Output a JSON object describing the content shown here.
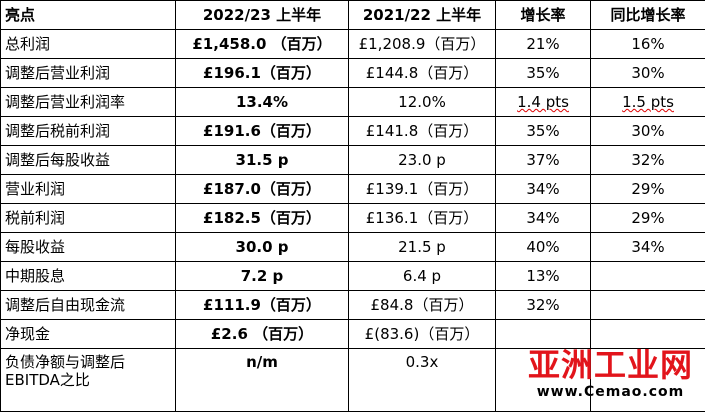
{
  "table": {
    "header": [
      "亮点",
      "2022/23  上半年",
      "2021/22  上半年",
      "增长率",
      "同比增长率"
    ],
    "rows": [
      [
        "总利润",
        "£1,458.0 （百万）",
        "£1,208.9（百万）",
        "21%",
        "16%"
      ],
      [
        "调整后营业利润",
        "£196.1（百万）",
        "£144.8（百万）",
        "35%",
        "30%"
      ],
      [
        "调整后营业利润率",
        "13.4%",
        "12.0%",
        "1.4 pts",
        "1.5 pts"
      ],
      [
        "调整后税前利润",
        "£191.6（百万）",
        "£141.8（百万）",
        "35%",
        "30%"
      ],
      [
        "调整后每股收益",
        "31.5 p",
        "23.0 p",
        "37%",
        "32%"
      ],
      [
        "营业利润",
        "£187.0（百万）",
        "£139.1（百万）",
        "34%",
        "29%"
      ],
      [
        "税前利润",
        "£182.5（百万）",
        "£136.1（百万）",
        "34%",
        "29%"
      ],
      [
        "每股收益",
        "30.0 p",
        "21.5 p",
        "40%",
        "34%"
      ],
      [
        "中期股息",
        "7.2 p",
        "6.4 p",
        "13%",
        null
      ],
      [
        "调整后自由现金流",
        "£111.9（百万）",
        "£84.8（百万）",
        "32%",
        null
      ],
      [
        "净现金",
        "£2.6 （百万）",
        "£(83.6)（百万）",
        null,
        null
      ],
      [
        "负债净额与调整后 EBITDA之比",
        "n/m",
        "0.3x",
        null,
        null
      ]
    ]
  },
  "watermark": {
    "logo": "亚洲工业网",
    "url": "www.Cemao.com"
  }
}
